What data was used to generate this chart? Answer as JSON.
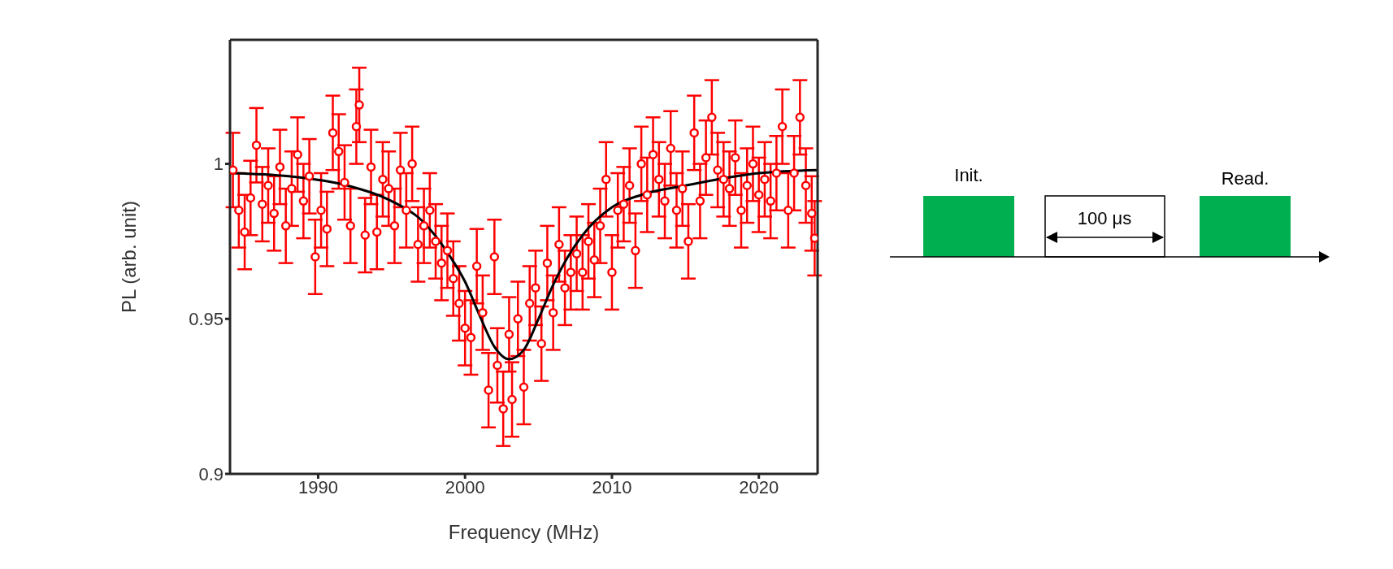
{
  "chart_data": {
    "type": "scatter",
    "xlabel": "Frequency (MHz)",
    "ylabel": "PL (arb. unit)",
    "xlim": [
      1984,
      2024
    ],
    "xticks": [
      1990,
      2000,
      2010,
      2020
    ],
    "ylim": [
      0.9,
      1.04
    ],
    "yticks": [
      0.9,
      0.95,
      1
    ],
    "annotations": [
      "Init.",
      "100 μs",
      "Read."
    ],
    "series": [
      {
        "marker": "circle",
        "color": "#ff0000",
        "x": [
          1984.2,
          1984.6,
          1985.0,
          1985.4,
          1985.8,
          1986.2,
          1986.6,
          1987.0,
          1987.4,
          1987.8,
          1988.2,
          1988.6,
          1989.0,
          1989.4,
          1989.8,
          1990.2,
          1990.6,
          1991.0,
          1991.4,
          1991.8,
          1992.2,
          1992.6,
          1992.8,
          1993.2,
          1993.6,
          1994.0,
          1994.4,
          1994.8,
          1995.2,
          1995.6,
          1996.0,
          1996.4,
          1996.8,
          1997.2,
          1997.6,
          1998.0,
          1998.4,
          1998.8,
          1999.2,
          1999.6,
          2000.0,
          2000.4,
          2000.8,
          2001.2,
          2001.6,
          2002.0,
          2002.2,
          2002.6,
          2003.0,
          2003.2,
          2003.6,
          2004.0,
          2004.4,
          2004.8,
          2005.2,
          2005.6,
          2006.0,
          2006.4,
          2006.8,
          2007.2,
          2007.6,
          2008.0,
          2008.4,
          2008.8,
          2009.2,
          2009.6,
          2010.0,
          2010.4,
          2010.8,
          2011.2,
          2011.6,
          2012.0,
          2012.4,
          2012.8,
          2013.2,
          2013.6,
          2014.0,
          2014.4,
          2014.8,
          2015.2,
          2015.6,
          2016.0,
          2016.4,
          2016.8,
          2017.2,
          2017.6,
          2018.0,
          2018.4,
          2018.8,
          2019.2,
          2019.6,
          2020.0,
          2020.4,
          2020.8,
          2021.2,
          2021.6,
          2022.0,
          2022.4,
          2022.8,
          2023.2,
          2023.6,
          2023.8
        ],
        "values": [
          0.998,
          0.985,
          0.978,
          0.989,
          1.006,
          0.987,
          0.993,
          0.984,
          0.999,
          0.98,
          0.992,
          1.003,
          0.988,
          0.996,
          0.97,
          0.985,
          0.979,
          1.01,
          1.004,
          0.994,
          0.98,
          1.012,
          1.019,
          0.977,
          0.999,
          0.978,
          0.995,
          0.992,
          0.98,
          0.998,
          0.985,
          1.0,
          0.974,
          0.98,
          0.985,
          0.975,
          0.968,
          0.972,
          0.963,
          0.955,
          0.947,
          0.944,
          0.967,
          0.952,
          0.927,
          0.97,
          0.935,
          0.921,
          0.945,
          0.924,
          0.95,
          0.928,
          0.955,
          0.96,
          0.942,
          0.968,
          0.952,
          0.974,
          0.96,
          0.965,
          0.971,
          0.965,
          0.975,
          0.969,
          0.98,
          0.995,
          0.965,
          0.985,
          0.987,
          0.993,
          0.972,
          1.0,
          0.99,
          1.003,
          0.995,
          0.988,
          1.005,
          0.985,
          0.992,
          0.975,
          1.01,
          0.988,
          1.002,
          1.015,
          0.998,
          0.995,
          0.992,
          1.002,
          0.985,
          0.993,
          1.0,
          0.99,
          0.995,
          0.988,
          0.997,
          1.012,
          0.985,
          0.997,
          1.015,
          0.993,
          0.984,
          0.976
        ],
        "errors": [
          0.012,
          0.012,
          0.012,
          0.012,
          0.012,
          0.012,
          0.012,
          0.012,
          0.012,
          0.012,
          0.012,
          0.012,
          0.012,
          0.012,
          0.012,
          0.012,
          0.012,
          0.012,
          0.012,
          0.012,
          0.012,
          0.012,
          0.012,
          0.012,
          0.012,
          0.012,
          0.012,
          0.012,
          0.012,
          0.012,
          0.012,
          0.012,
          0.012,
          0.012,
          0.012,
          0.012,
          0.012,
          0.012,
          0.012,
          0.012,
          0.012,
          0.012,
          0.012,
          0.012,
          0.012,
          0.012,
          0.012,
          0.012,
          0.012,
          0.012,
          0.012,
          0.012,
          0.012,
          0.012,
          0.012,
          0.012,
          0.012,
          0.012,
          0.012,
          0.012,
          0.012,
          0.012,
          0.012,
          0.012,
          0.012,
          0.012,
          0.012,
          0.012,
          0.012,
          0.012,
          0.012,
          0.012,
          0.012,
          0.012,
          0.012,
          0.012,
          0.012,
          0.012,
          0.012,
          0.012,
          0.012,
          0.012,
          0.012,
          0.012,
          0.012,
          0.012,
          0.012,
          0.012,
          0.012,
          0.012,
          0.012,
          0.012,
          0.012,
          0.012,
          0.012,
          0.012,
          0.012,
          0.012,
          0.012,
          0.012,
          0.012,
          0.012
        ]
      },
      {
        "type": "line",
        "marker": "none",
        "color": "#000000",
        "x": [
          1984,
          1988,
          1992,
          1995,
          1997,
          1999,
          2000,
          2001,
          2002,
          2003,
          2004,
          2005,
          2006,
          2007,
          2008,
          2010,
          2012,
          2015,
          2020,
          2024
        ],
        "values": [
          0.997,
          0.996,
          0.993,
          0.988,
          0.982,
          0.97,
          0.962,
          0.951,
          0.941,
          0.937,
          0.94,
          0.95,
          0.961,
          0.97,
          0.977,
          0.986,
          0.99,
          0.993,
          0.997,
          0.998
        ]
      }
    ]
  }
}
